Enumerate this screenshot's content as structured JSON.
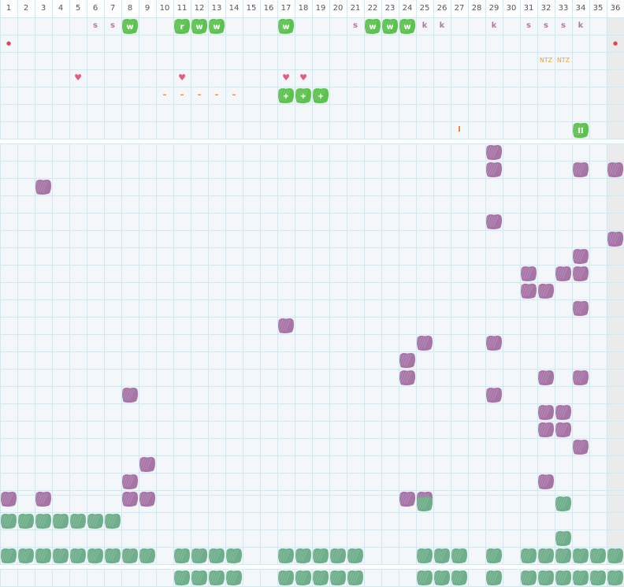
{
  "colors": {
    "grid": "#d6e6ee",
    "panel_bg": "#f3f7f9",
    "header_bg": "#ffffff",
    "last_col_bg": "#ebebeb",
    "separator": "#ffffff",
    "green_badge": "#5cc24e",
    "purple_blob": "#a774a6",
    "teal_blob": "#6fae8a",
    "letter_color": "#b07aa0",
    "heart": "#e25d7f",
    "dash": "#f07a3a",
    "ntz": "#f0a020",
    "drop": "#e0455a"
  },
  "columns": [
    "1",
    "2",
    "3",
    "4",
    "5",
    "6",
    "7",
    "8",
    "9",
    "10",
    "11",
    "12",
    "13",
    "14",
    "15",
    "16",
    "17",
    "18",
    "19",
    "20",
    "21",
    "22",
    "23",
    "24",
    "25",
    "26",
    "27",
    "28",
    "29",
    "30",
    "31",
    "32",
    "33",
    "34",
    "35",
    "36"
  ],
  "header_marks": {
    "row1": [
      {
        "col": 6,
        "kind": "letter",
        "text": "s"
      },
      {
        "col": 7,
        "kind": "letter",
        "text": "s"
      },
      {
        "col": 8,
        "kind": "badge",
        "text": "w"
      },
      {
        "col": 11,
        "kind": "badge",
        "text": "r"
      },
      {
        "col": 12,
        "kind": "badge",
        "text": "w"
      },
      {
        "col": 13,
        "kind": "badge",
        "text": "w"
      },
      {
        "col": 17,
        "kind": "badge",
        "text": "w"
      },
      {
        "col": 21,
        "kind": "letter",
        "text": "s"
      },
      {
        "col": 22,
        "kind": "badge",
        "text": "w"
      },
      {
        "col": 23,
        "kind": "badge",
        "text": "w"
      },
      {
        "col": 24,
        "kind": "badge",
        "text": "w"
      },
      {
        "col": 25,
        "kind": "letter",
        "text": "k"
      },
      {
        "col": 26,
        "kind": "letter",
        "text": "k"
      },
      {
        "col": 29,
        "kind": "letter",
        "text": "k"
      },
      {
        "col": 31,
        "kind": "letter",
        "text": "s"
      },
      {
        "col": 32,
        "kind": "letter",
        "text": "s"
      },
      {
        "col": 33,
        "kind": "letter",
        "text": "s"
      },
      {
        "col": 34,
        "kind": "letter",
        "text": "k"
      }
    ],
    "row2": [
      {
        "col": 1,
        "kind": "drop",
        "text": "💧"
      },
      {
        "col": 36,
        "kind": "drop",
        "text": "💧"
      }
    ],
    "row3": [
      {
        "col": 32,
        "kind": "ntz",
        "text": "NTZ"
      },
      {
        "col": 33,
        "kind": "ntz",
        "text": "NTZ"
      }
    ],
    "row4": [
      {
        "col": 5,
        "kind": "heart",
        "text": "♥"
      },
      {
        "col": 11,
        "kind": "heart",
        "text": "♥"
      },
      {
        "col": 17,
        "kind": "heart",
        "text": "♥"
      },
      {
        "col": 18,
        "kind": "heart",
        "text": "♥"
      }
    ],
    "row5": [
      {
        "col": 10,
        "kind": "dash",
        "text": "–"
      },
      {
        "col": 11,
        "kind": "dash",
        "text": "–"
      },
      {
        "col": 12,
        "kind": "dash",
        "text": "–"
      },
      {
        "col": 13,
        "kind": "dash",
        "text": "–"
      },
      {
        "col": 14,
        "kind": "dash",
        "text": "–"
      },
      {
        "col": 17,
        "kind": "badge",
        "text": "+"
      },
      {
        "col": 18,
        "kind": "badge",
        "text": "+"
      },
      {
        "col": 19,
        "kind": "badge",
        "text": "+"
      }
    ],
    "row6": [],
    "row7": [
      {
        "col": 27,
        "kind": "dash",
        "text": "I"
      },
      {
        "col": 34,
        "kind": "badge",
        "text": "II"
      }
    ]
  },
  "purple_rows": [
    [
      29
    ],
    [
      29,
      34,
      36
    ],
    [
      3
    ],
    [],
    [
      29
    ],
    [
      36
    ],
    [
      34
    ],
    [
      31,
      33,
      34
    ],
    [
      31,
      32
    ],
    [
      34
    ],
    [
      17
    ],
    [
      25,
      29
    ],
    [
      24
    ],
    [
      24,
      32,
      34
    ],
    [
      8,
      29
    ],
    [
      32,
      33
    ],
    [
      32,
      33
    ],
    [
      34
    ],
    [
      9
    ],
    [
      8,
      32
    ],
    [
      1,
      3,
      8,
      9,
      24,
      25
    ]
  ],
  "teal_rows": [
    [
      25,
      33
    ],
    [
      1,
      2,
      3,
      4,
      5,
      6,
      7
    ],
    [
      33
    ],
    [
      1,
      2,
      3,
      4,
      5,
      6,
      7,
      8,
      9,
      11,
      12,
      13,
      14,
      17,
      18,
      19,
      20,
      21,
      25,
      26,
      27,
      29,
      31,
      32,
      33,
      34,
      35,
      36
    ]
  ],
  "teal_bottom_row": [
    11,
    12,
    13,
    14,
    17,
    18,
    19,
    20,
    21,
    25,
    26,
    27,
    29,
    31,
    32,
    33,
    34,
    35,
    36
  ]
}
